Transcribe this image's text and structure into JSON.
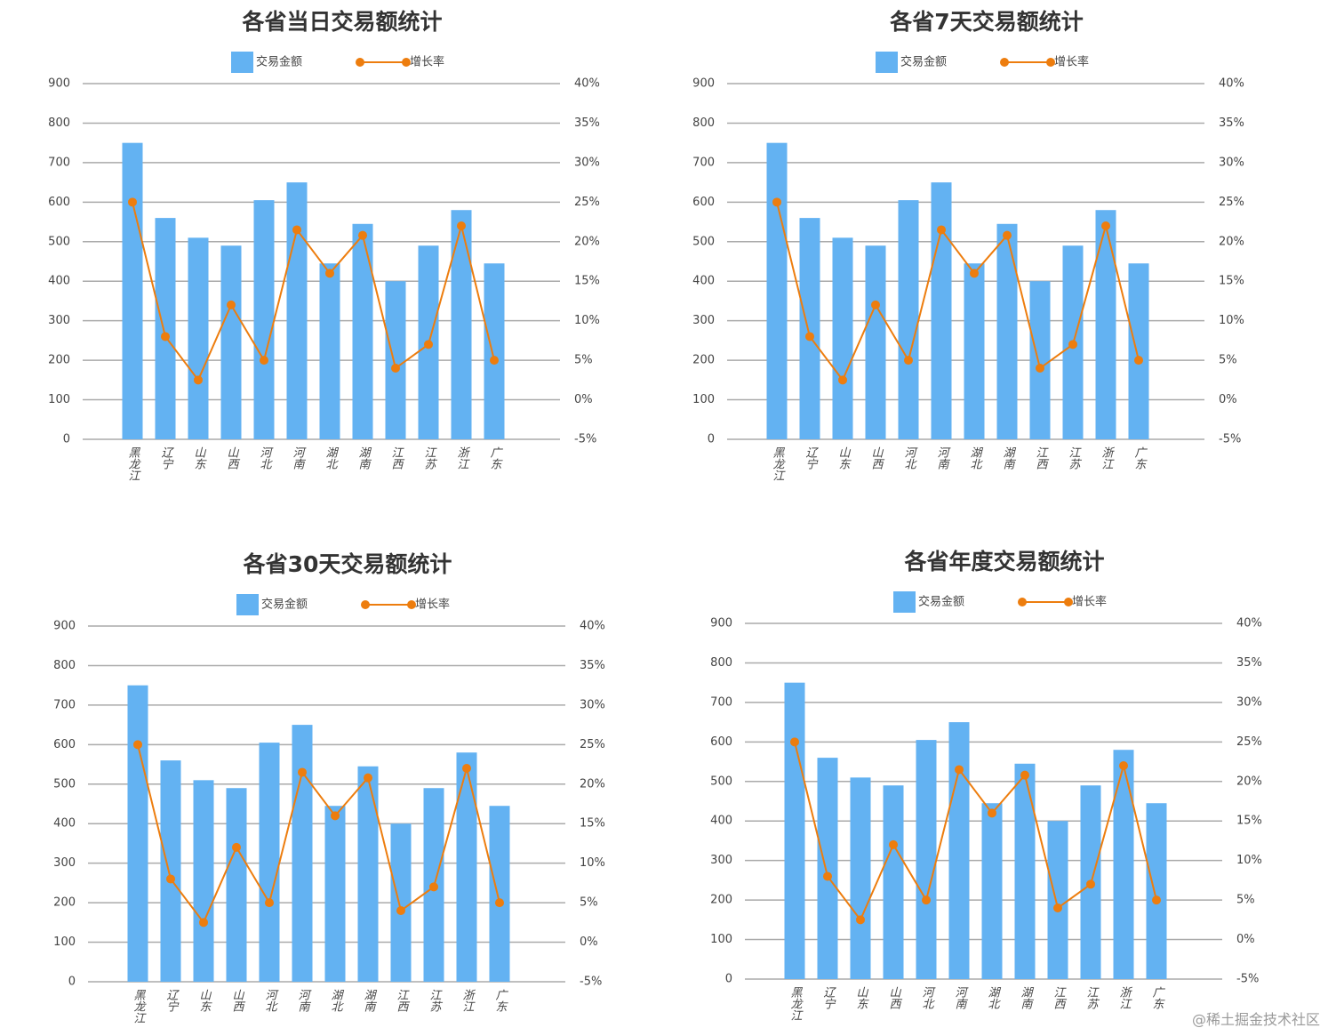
{
  "chart_data": [
    {
      "type": "bar",
      "title": "各省当日交易额统计",
      "categories": [
        "黑龙江",
        "辽宁",
        "山东",
        "山西",
        "河北",
        "河南",
        "湖北",
        "湖南",
        "江西",
        "江苏",
        "浙江",
        "广东"
      ],
      "series": [
        {
          "name": "交易金额",
          "type": "bar",
          "color": "#63b2f2",
          "values": [
            750,
            560,
            510,
            490,
            605,
            650,
            445,
            545,
            400,
            490,
            580,
            445
          ]
        },
        {
          "name": "增长率",
          "type": "line",
          "axis": "y2",
          "color": "#ed7d0e",
          "values": [
            25,
            8,
            2.5,
            12,
            5,
            21.5,
            16,
            20.8,
            4,
            7,
            22,
            5
          ]
        }
      ],
      "ylim": [
        0,
        900
      ],
      "yticks": [
        0,
        100,
        200,
        300,
        400,
        500,
        600,
        700,
        800,
        900
      ],
      "y2lim": [
        -5,
        40
      ],
      "y2ticks": [
        {
          "value": -5,
          "label": "-5%"
        },
        {
          "value": 0,
          "label": "0%"
        },
        {
          "value": 5,
          "label": "5%"
        },
        {
          "value": 10,
          "label": "10%"
        },
        {
          "value": 15,
          "label": "15%"
        },
        {
          "value": 20,
          "label": "20%"
        },
        {
          "value": 25,
          "label": "25%"
        },
        {
          "value": 30,
          "label": "30%"
        },
        {
          "value": 35,
          "label": "35%"
        },
        {
          "value": 40,
          "label": "40%"
        }
      ],
      "grid": true
    },
    {
      "type": "bar",
      "title": "各省7天交易额统计",
      "categories": [
        "黑龙江",
        "辽宁",
        "山东",
        "山西",
        "河北",
        "河南",
        "湖北",
        "湖南",
        "江西",
        "江苏",
        "浙江",
        "广东"
      ],
      "series": [
        {
          "name": "交易金额",
          "type": "bar",
          "color": "#63b2f2",
          "values": [
            750,
            560,
            510,
            490,
            605,
            650,
            445,
            545,
            400,
            490,
            580,
            445
          ]
        },
        {
          "name": "增长率",
          "type": "line",
          "axis": "y2",
          "color": "#ed7d0e",
          "values": [
            25,
            8,
            2.5,
            12,
            5,
            21.5,
            16,
            20.8,
            4,
            7,
            22,
            5
          ]
        }
      ],
      "ylim": [
        0,
        900
      ],
      "yticks": [
        0,
        100,
        200,
        300,
        400,
        500,
        600,
        700,
        800,
        900
      ],
      "y2lim": [
        -5,
        40
      ],
      "y2ticks": [
        {
          "value": -5,
          "label": "-5%"
        },
        {
          "value": 0,
          "label": "0%"
        },
        {
          "value": 5,
          "label": "5%"
        },
        {
          "value": 10,
          "label": "10%"
        },
        {
          "value": 15,
          "label": "15%"
        },
        {
          "value": 20,
          "label": "20%"
        },
        {
          "value": 25,
          "label": "25%"
        },
        {
          "value": 30,
          "label": "30%"
        },
        {
          "value": 35,
          "label": "35%"
        },
        {
          "value": 40,
          "label": "40%"
        }
      ],
      "grid": true
    },
    {
      "type": "bar",
      "title": "各省30天交易额统计",
      "categories": [
        "黑龙江",
        "辽宁",
        "山东",
        "山西",
        "河北",
        "河南",
        "湖北",
        "湖南",
        "江西",
        "江苏",
        "浙江",
        "广东"
      ],
      "series": [
        {
          "name": "交易金额",
          "type": "bar",
          "color": "#63b2f2",
          "values": [
            750,
            560,
            510,
            490,
            605,
            650,
            445,
            545,
            400,
            490,
            580,
            445
          ]
        },
        {
          "name": "增长率",
          "type": "line",
          "axis": "y2",
          "color": "#ed7d0e",
          "values": [
            25,
            8,
            2.5,
            12,
            5,
            21.5,
            16,
            20.8,
            4,
            7,
            22,
            5
          ]
        }
      ],
      "ylim": [
        0,
        900
      ],
      "yticks": [
        0,
        100,
        200,
        300,
        400,
        500,
        600,
        700,
        800,
        900
      ],
      "y2lim": [
        -5,
        40
      ],
      "y2ticks": [
        {
          "value": -5,
          "label": "-5%"
        },
        {
          "value": 0,
          "label": "0%"
        },
        {
          "value": 5,
          "label": "5%"
        },
        {
          "value": 10,
          "label": "10%"
        },
        {
          "value": 15,
          "label": "15%"
        },
        {
          "value": 20,
          "label": "20%"
        },
        {
          "value": 25,
          "label": "25%"
        },
        {
          "value": 30,
          "label": "30%"
        },
        {
          "value": 35,
          "label": "35%"
        },
        {
          "value": 40,
          "label": "40%"
        }
      ],
      "grid": true
    },
    {
      "type": "bar",
      "title": "各省年度交易额统计",
      "categories": [
        "黑龙江",
        "辽宁",
        "山东",
        "山西",
        "河北",
        "河南",
        "湖北",
        "湖南",
        "江西",
        "江苏",
        "浙江",
        "广东"
      ],
      "series": [
        {
          "name": "交易金额",
          "type": "bar",
          "color": "#63b2f2",
          "values": [
            750,
            560,
            510,
            490,
            605,
            650,
            445,
            545,
            400,
            490,
            580,
            445
          ]
        },
        {
          "name": "增长率",
          "type": "line",
          "axis": "y2",
          "color": "#ed7d0e",
          "values": [
            25,
            8,
            2.5,
            12,
            5,
            21.5,
            16,
            20.8,
            4,
            7,
            22,
            5
          ]
        }
      ],
      "ylim": [
        0,
        900
      ],
      "yticks": [
        0,
        100,
        200,
        300,
        400,
        500,
        600,
        700,
        800,
        900
      ],
      "y2lim": [
        -5,
        40
      ],
      "y2ticks": [
        {
          "value": -5,
          "label": "-5%"
        },
        {
          "value": 0,
          "label": "0%"
        },
        {
          "value": 5,
          "label": "5%"
        },
        {
          "value": 10,
          "label": "10%"
        },
        {
          "value": 15,
          "label": "15%"
        },
        {
          "value": 20,
          "label": "20%"
        },
        {
          "value": 25,
          "label": "25%"
        },
        {
          "value": 30,
          "label": "30%"
        },
        {
          "value": 35,
          "label": "35%"
        },
        {
          "value": 40,
          "label": "40%"
        }
      ],
      "grid": true
    }
  ],
  "watermark": "@稀土掘金技术社区"
}
